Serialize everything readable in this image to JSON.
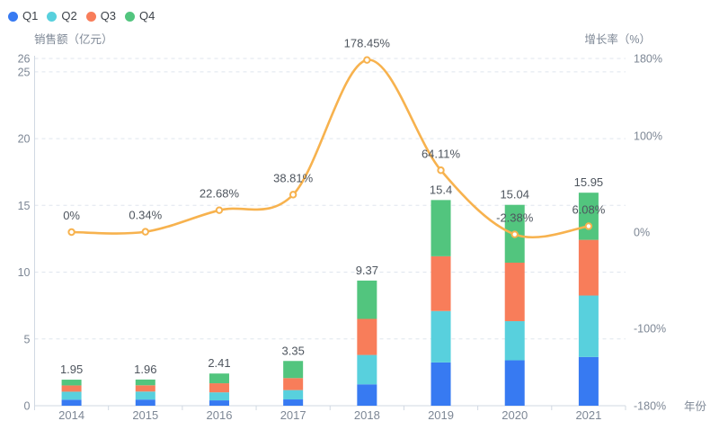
{
  "legend": {
    "items": [
      {
        "label": "Q1",
        "color": "#377af2"
      },
      {
        "label": "Q2",
        "color": "#58d0dd"
      },
      {
        "label": "Q3",
        "color": "#f87d5a"
      },
      {
        "label": "Q4",
        "color": "#52c57e"
      }
    ]
  },
  "chart_data": {
    "type": "bar",
    "subtype": "stacked-bars-with-growth-line",
    "categories": [
      "2014",
      "2015",
      "2016",
      "2017",
      "2018",
      "2019",
      "2020",
      "2021"
    ],
    "series": [
      {
        "name": "Q1",
        "type": "bar",
        "stack": "sales",
        "color": "#377af2",
        "values": [
          0.45,
          0.46,
          0.4,
          0.47,
          1.6,
          3.24,
          3.4,
          3.65
        ]
      },
      {
        "name": "Q2",
        "type": "bar",
        "stack": "sales",
        "color": "#58d0dd",
        "values": [
          0.6,
          0.6,
          0.6,
          0.7,
          2.2,
          3.85,
          2.93,
          4.6
        ]
      },
      {
        "name": "Q3",
        "type": "bar",
        "stack": "sales",
        "color": "#f87d5a",
        "values": [
          0.47,
          0.47,
          0.68,
          0.9,
          2.7,
          4.1,
          4.38,
          4.17
        ]
      },
      {
        "name": "Q4",
        "type": "bar",
        "stack": "sales",
        "color": "#52c57e",
        "values": [
          0.43,
          0.43,
          0.73,
          1.28,
          2.87,
          4.21,
          4.33,
          3.53
        ]
      },
      {
        "name": "增长率",
        "type": "line",
        "y_axis": "right",
        "color": "#f7b24e",
        "smooth": true,
        "values": [
          0,
          0.34,
          22.68,
          38.81,
          178.45,
          64.11,
          -2.38,
          6.08
        ],
        "point_labels": [
          "0%",
          "0.34%",
          "22.68%",
          "38.81%",
          "178.45%",
          "64.11%",
          "-2.38%",
          "6.08%"
        ]
      }
    ],
    "stack_totals": [
      1.95,
      1.96,
      2.41,
      3.35,
      9.37,
      15.4,
      15.04,
      15.95
    ],
    "stack_total_labels": [
      "1.95",
      "1.96",
      "2.41",
      "3.35",
      "9.37",
      "15.4",
      "15.04",
      "15.95"
    ],
    "left_axis": {
      "name": "销售额（亿元）",
      "min": 0,
      "max": 26,
      "ticks": [
        0,
        5,
        10,
        15,
        20,
        25,
        26
      ],
      "tick_labels": [
        "0",
        "5",
        "10",
        "15",
        "20",
        "25",
        "26"
      ]
    },
    "right_axis": {
      "name": "增长率（%）",
      "min": -180,
      "max": 180,
      "ticks": [
        -180,
        -100,
        0,
        100,
        180
      ],
      "tick_labels": [
        "-180%",
        "-100%",
        "0%",
        "100%",
        "180%"
      ]
    },
    "x_axis": {
      "name": "年份"
    },
    "grid": {
      "horizontal": true,
      "style": "dashed"
    },
    "legend_position": "top-left"
  },
  "colors": {
    "background": "#ffffff",
    "gridline": "#dfe5ee",
    "axis_line": "#d0d8e2",
    "tick_label": "#7d8795",
    "data_label": "#4e555e",
    "line_marker_fill": "#ffffff"
  }
}
